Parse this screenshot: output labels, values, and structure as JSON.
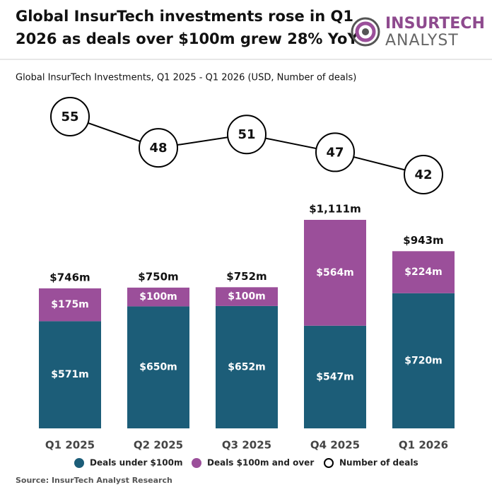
{
  "chart_data": {
    "type": "bar",
    "title": [
      "Global InsurTech investments rose in Q1",
      "2026 as deals over $100m grew 28% YoY"
    ],
    "logo": [
      "INSURTECH",
      "ANALYST"
    ],
    "subtitle": "Global InsurTech Investments, Q1 2025 - Q1 2026 (USD, Number of deals)",
    "categories": [
      "Q1 2025",
      "Q2 2025",
      "Q3 2025",
      "Q4 2025",
      "Q1 2026"
    ],
    "series": [
      {
        "name": "Deals under $100m",
        "color": "#1c5d78",
        "values": [
          571,
          650,
          652,
          547,
          720
        ],
        "value_labels": [
          "$571m",
          "$650m",
          "$652m",
          "$547m",
          "$720m"
        ]
      },
      {
        "name": "Deals $100m and over",
        "color": "#9b4f9a",
        "values": [
          175,
          100,
          100,
          564,
          224
        ],
        "value_labels": [
          "$175m",
          "$100m",
          "$100m",
          "$564m",
          "$224m"
        ]
      },
      {
        "name": "Number of deals",
        "type": "line",
        "color": "#000000",
        "values": [
          55,
          48,
          51,
          47,
          42
        ]
      }
    ],
    "totals": [
      746,
      750,
      752,
      1111,
      943
    ],
    "total_labels": [
      "$746m",
      "$750m",
      "$752m",
      "$1,111m",
      "$943m"
    ],
    "source": "Source: InsurTech Analyst Research"
  }
}
